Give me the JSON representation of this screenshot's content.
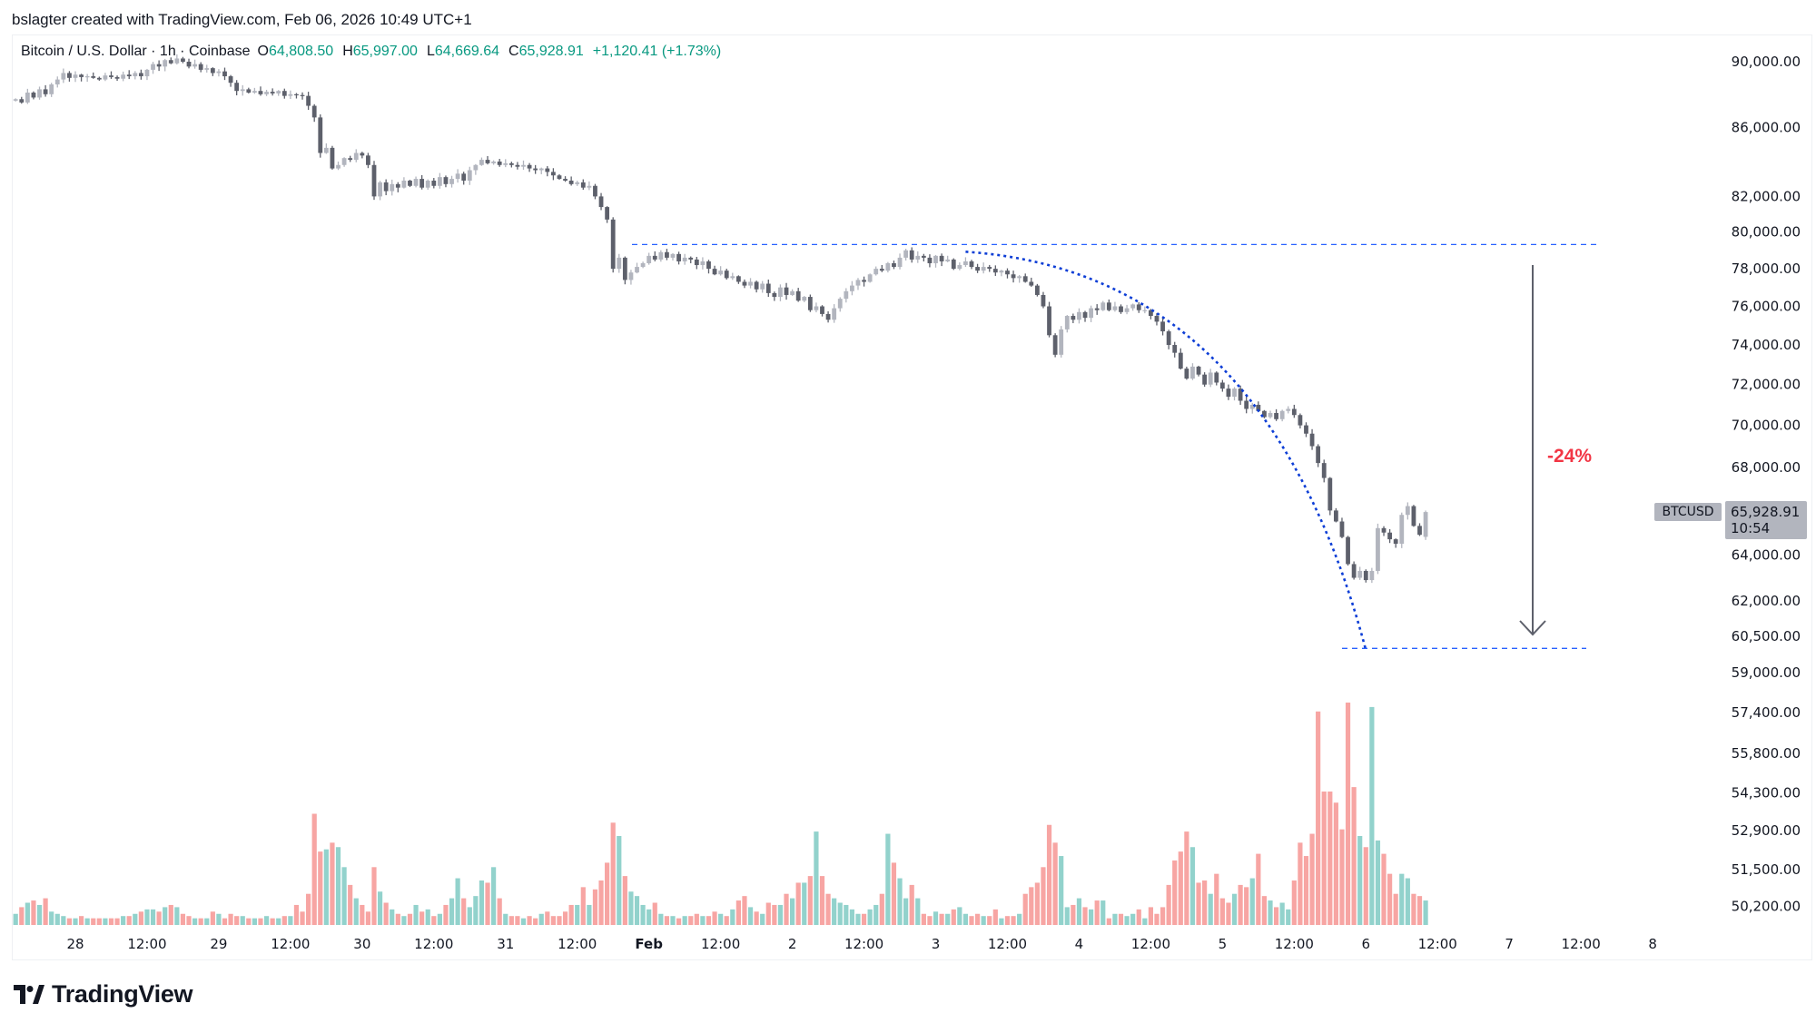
{
  "credit": "bslagter created with TradingView.com, Feb 06, 2026 10:49 UTC+1",
  "legend": {
    "symbol": "Bitcoin / U.S. Dollar · 1h · Coinbase",
    "open_label": "O",
    "open": "64,808.50",
    "high_label": "H",
    "high": "65,997.00",
    "low_label": "L",
    "low": "64,669.64",
    "close_label": "C",
    "close": "65,928.91",
    "change": "+1,120.41 (+1.73%)"
  },
  "symbol_tag": "BTCUSD",
  "last_price": "65,928.91",
  "countdown": "10:54",
  "annotation_label": "-24%",
  "logo_text": "TradingView",
  "colors": {
    "up": "#b2b5be",
    "down": "#5d606b",
    "vol_up": "#92d2cc",
    "vol_down": "#f7a5a3",
    "line": "#2962ff",
    "curve": "#0d3ed6",
    "label": "#f23645",
    "legend": "#089981"
  },
  "chart_data": {
    "type": "candlestick",
    "title": "Bitcoin / U.S. Dollar · 1h · Coinbase",
    "interval_hours": 1,
    "start": "Jan 27 14:00",
    "last_open": 64808.5,
    "last_high": 65997.0,
    "last_low": 64669.64,
    "close": [
      87700,
      87500,
      88100,
      87800,
      88300,
      88000,
      88600,
      88900,
      89300,
      89000,
      89200,
      89050,
      89100,
      89000,
      88900,
      89150,
      89050,
      88950,
      89200,
      89100,
      89300,
      89100,
      89500,
      89850,
      89700,
      90100,
      89900,
      90200,
      90000,
      89700,
      89850,
      89500,
      89600,
      89300,
      89400,
      89100,
      88700,
      88200,
      88300,
      88100,
      88200,
      88000,
      88150,
      88050,
      88200,
      87900,
      88000,
      87950,
      87900,
      87300,
      86600,
      84500,
      84800,
      83600,
      83800,
      84200,
      84100,
      84500,
      84350,
      83800,
      82000,
      82800,
      82300,
      82700,
      82500,
      82900,
      82600,
      83000,
      82500,
      82900,
      82600,
      83100,
      82700,
      83000,
      83300,
      82900,
      83500,
      83800,
      84100,
      83900,
      84000,
      83800,
      83900,
      83800,
      83700,
      83800,
      83600,
      83500,
      83600,
      83400,
      83200,
      83000,
      82900,
      82700,
      82800,
      82500,
      82600,
      82000,
      81400,
      80700,
      78000,
      78600,
      77400,
      77800,
      78100,
      78300,
      78700,
      78500,
      78900,
      78600,
      78800,
      78400,
      78600,
      78500,
      78200,
      78400,
      78000,
      77700,
      77900,
      77500,
      77600,
      77300,
      77100,
      77300,
      76900,
      77200,
      76700,
      76500,
      77000,
      76600,
      76800,
      76300,
      76500,
      75800,
      76000,
      75600,
      75300,
      75900,
      76400,
      76800,
      77100,
      77400,
      77300,
      77700,
      78000,
      77900,
      78300,
      78100,
      78600,
      79000,
      78500,
      78700,
      78600,
      78300,
      78700,
      78400,
      78500,
      78000,
      78200,
      78400,
      78100,
      77900,
      78100,
      78000,
      77800,
      77900,
      77700,
      77500,
      77600,
      77300,
      77100,
      76600,
      76000,
      74500,
      73500,
      74800,
      75500,
      75300,
      75700,
      75400,
      75900,
      75800,
      76200,
      75800,
      76000,
      75700,
      75900,
      76100,
      75800,
      75800,
      75500,
      75200,
      74700,
      74000,
      73600,
      72800,
      72300,
      72900,
      72500,
      72000,
      72600,
      72100,
      71800,
      71400,
      71800,
      71200,
      70800,
      71000,
      70700,
      70400,
      70600,
      70300,
      70700,
      70800,
      70500,
      70000,
      69600,
      69000,
      68200,
      67500,
      66000,
      65500,
      64800,
      63600,
      63000,
      63300,
      62900,
      63300,
      65200,
      65000,
      64700,
      64500,
      65800,
      66200,
      65300,
      64900,
      65928.91
    ],
    "volume_relative": [
      5,
      8,
      10,
      11,
      9,
      12,
      6,
      5,
      4,
      3,
      3,
      4,
      3,
      3,
      3,
      3,
      3,
      3,
      4,
      4,
      5,
      6,
      7,
      7,
      6,
      8,
      9,
      8,
      5,
      4,
      3,
      3,
      3,
      6,
      5,
      3,
      5,
      4,
      4,
      3,
      3,
      3,
      4,
      3,
      3,
      4,
      4,
      9,
      6,
      14,
      50,
      33,
      34,
      37,
      35,
      26,
      18,
      12,
      9,
      6,
      26,
      15,
      10,
      7,
      5,
      4,
      5,
      9,
      6,
      7,
      4,
      5,
      9,
      12,
      21,
      12,
      8,
      13,
      20,
      19,
      26,
      12,
      5,
      4,
      4,
      3,
      4,
      3,
      5,
      6,
      4,
      4,
      6,
      9,
      9,
      17,
      9,
      16,
      20,
      28,
      46,
      40,
      22,
      15,
      13,
      9,
      7,
      10,
      5,
      4,
      4,
      3,
      4,
      4,
      5,
      4,
      4,
      6,
      5,
      4,
      7,
      11,
      13,
      8,
      6,
      5,
      10,
      9,
      9,
      14,
      12,
      19,
      19,
      22,
      42,
      22,
      14,
      12,
      10,
      9,
      7,
      5,
      5,
      7,
      9,
      14,
      41,
      28,
      21,
      12,
      18,
      12,
      5,
      4,
      6,
      5,
      5,
      7,
      8,
      5,
      4,
      5,
      4,
      4,
      7,
      3,
      4,
      4,
      5,
      14,
      17,
      19,
      26,
      45,
      37,
      31,
      8,
      9,
      12,
      8,
      7,
      11,
      11,
      3,
      5,
      5,
      4,
      5,
      7,
      3,
      8,
      5,
      8,
      18,
      29,
      33,
      42,
      35,
      19,
      20,
      14,
      23,
      12,
      10,
      14,
      18,
      17,
      21,
      32,
      13,
      11,
      8,
      10,
      7,
      20,
      37,
      31,
      41,
      96,
      60,
      60,
      55,
      43,
      100,
      62,
      40,
      35,
      98,
      38,
      32,
      23,
      14,
      23,
      21,
      14,
      13,
      11
    ],
    "price_axis": {
      "scale": "log",
      "ticks": [
        90000,
        86000,
        82000,
        80000,
        78000,
        76000,
        74000,
        72000,
        70000,
        68000,
        64000,
        62000,
        60500,
        59000,
        57400,
        55800,
        54300,
        52900,
        51500,
        50200
      ],
      "tick_labels": [
        "90,000.00",
        "86,000.00",
        "82,000.00",
        "80,000.00",
        "78,000.00",
        "76,000.00",
        "74,000.00",
        "72,000.00",
        "70,000.00",
        "68,000.00",
        "64,000.00",
        "62,000.00",
        "60,500.00",
        "59,000.00",
        "57,400.00",
        "55,800.00",
        "54,300.00",
        "52,900.00",
        "51,500.00",
        "50,200.00"
      ]
    },
    "time_axis": {
      "first_label_hour_index": 10,
      "label_step_hours": 12,
      "tick_labels": [
        "28",
        "12:00",
        "29",
        "12:00",
        "30",
        "12:00",
        "31",
        "12:00",
        "Feb",
        "12:00",
        "2",
        "12:00",
        "3",
        "12:00",
        "4",
        "12:00",
        "5",
        "12:00",
        "6",
        "12:00",
        "7",
        "12:00",
        "8"
      ]
    },
    "annotations": {
      "resistance_price": 79320,
      "target_price": 60000,
      "curve_start_hour_index": 159,
      "curve_end_hour_index": 226,
      "drop_percent": -24
    }
  }
}
